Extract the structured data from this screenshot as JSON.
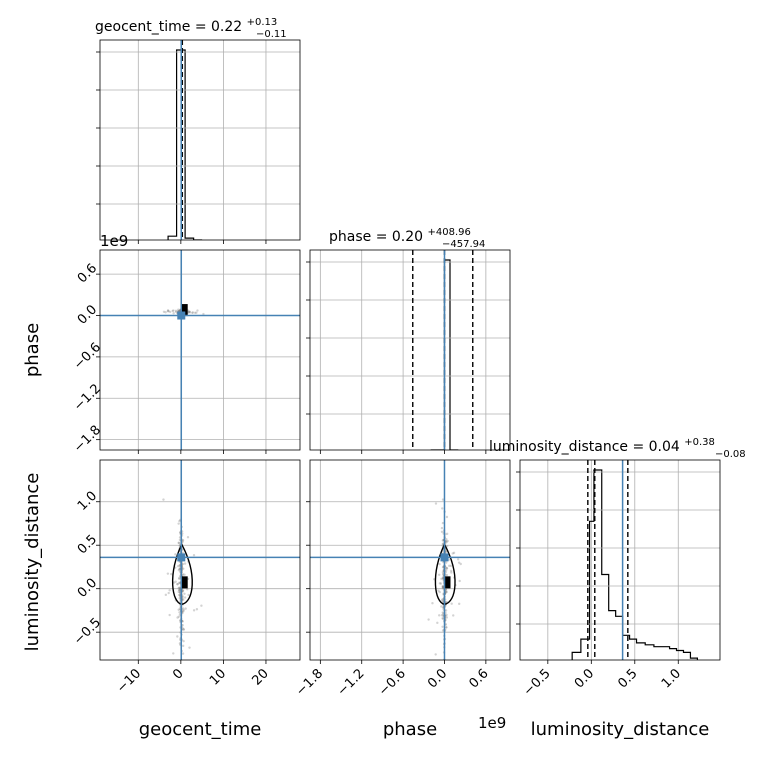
{
  "chart_data": {
    "type": "corner",
    "parameters": [
      "geocent_time",
      "phase",
      "luminosity_distance"
    ],
    "titles": [
      {
        "param": "geocent_time",
        "median": "0.22",
        "plus": "+0.13",
        "minus": "−0.11"
      },
      {
        "param": "phase",
        "median": "0.20",
        "plus": "+408.96",
        "minus": "−457.94"
      },
      {
        "param": "luminosity_distance",
        "median": "0.04",
        "plus": "+0.38",
        "minus": "−0.08"
      }
    ],
    "axis_labels": {
      "geocent_time": "geocent_time",
      "phase": "phase",
      "luminosity_distance": "luminosity_distance"
    },
    "offset_texts": {
      "phase_y": "1e9",
      "phase_x": "1e9"
    },
    "ranges": {
      "geocent_time": [
        -19,
        28
      ],
      "phase": [
        -1.95,
        0.95
      ],
      "luminosity_distance": [
        -0.82,
        1.48
      ]
    },
    "ticks": {
      "geocent_time": [
        -10,
        0,
        10,
        20
      ],
      "phase": [
        -1.8,
        -1.2,
        -0.6,
        0.0,
        0.6
      ],
      "luminosity_distance": [
        -0.5,
        0.0,
        0.5,
        1.0
      ]
    },
    "tick_labels": {
      "geocent_time": [
        "−10",
        "0",
        "10",
        "20"
      ],
      "phase": [
        "−1.8",
        "−1.2",
        "−0.6",
        "0.0",
        "0.6"
      ],
      "luminosity_distance": [
        "−0.5",
        "0.0",
        "0.5",
        "1.0"
      ]
    },
    "truths": {
      "geocent_time": 0.1,
      "phase": 0.0,
      "luminosity_distance": 0.36
    },
    "quantiles": {
      "geocent_time": [
        0.11,
        0.22,
        0.35
      ],
      "phase": [
        -0.46,
        0.0,
        0.41
      ],
      "luminosity_distance": [
        -0.04,
        0.04,
        0.42
      ]
    },
    "histograms": {
      "geocent_time": {
        "edges": [
          -3,
          -1,
          1,
          3,
          5
        ],
        "counts": [
          0.02,
          1.0,
          0.01,
          0.0
        ]
      },
      "phase": {
        "edges": [
          -0.2,
          0.0,
          0.08,
          0.2
        ],
        "counts": [
          0.0,
          1.0,
          0.0
        ]
      },
      "luminosity_distance": {
        "edges": [
          -0.22,
          -0.12,
          -0.02,
          0.03,
          0.12,
          0.2,
          0.28,
          0.36,
          0.44,
          0.52,
          0.62,
          0.72,
          0.82,
          0.9,
          0.98,
          1.06,
          1.14,
          1.22
        ],
        "counts": [
          0.04,
          0.11,
          0.73,
          1.0,
          0.45,
          0.26,
          0.23,
          0.13,
          0.11,
          0.09,
          0.08,
          0.07,
          0.07,
          0.06,
          0.05,
          0.04,
          0.01
        ]
      }
    },
    "grid": true,
    "colors": {
      "truth": "#4682b4",
      "hist": "#000000",
      "scatter": "#808080"
    }
  }
}
